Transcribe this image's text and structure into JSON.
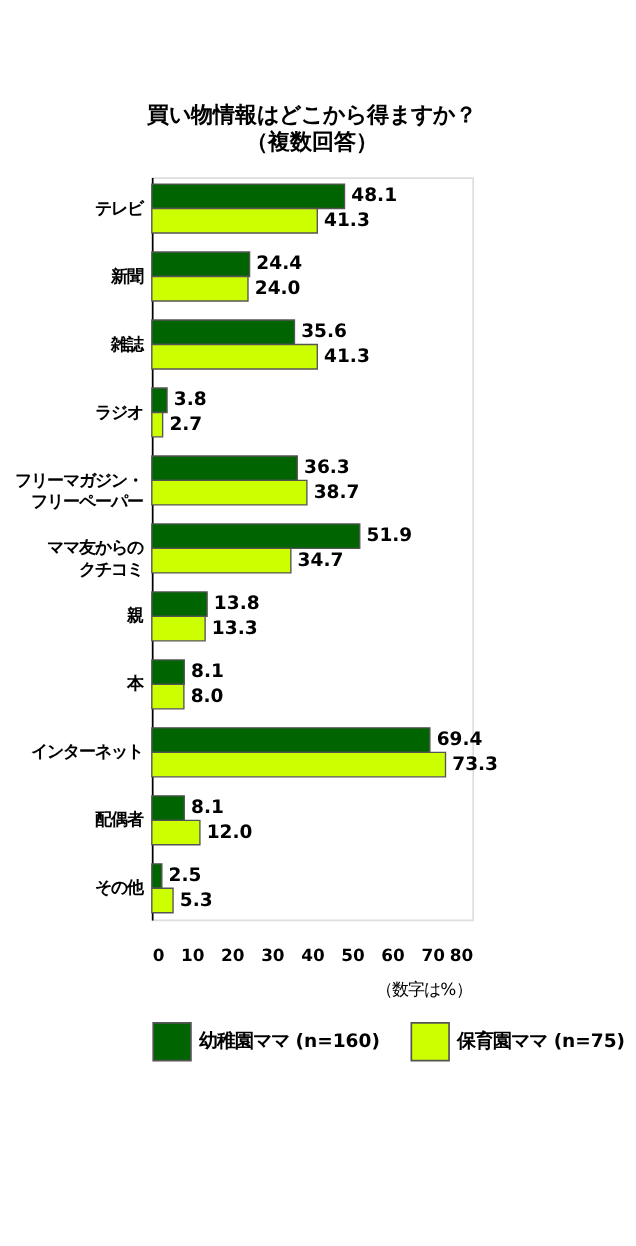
{
  "chart_data": {
    "type": "bar",
    "orientation": "horizontal",
    "title": "買い物情報はどこから得ますか？",
    "subtitle": "（複数回答）",
    "categories": [
      "テレビ",
      "新聞",
      "雑誌",
      "ラジオ",
      "フリーマガジン・フリーペーパー",
      "ママ友からのクチコミ",
      "親",
      "本",
      "インターネット",
      "配偶者",
      "その他"
    ],
    "series": [
      {
        "name": "幼稚園ママ (n=160)",
        "color": "#006400",
        "values": [
          48.1,
          24.4,
          35.6,
          3.8,
          36.3,
          51.9,
          13.8,
          8.1,
          69.4,
          8.1,
          2.5
        ],
        "value_labels": [
          "48.1",
          "24.4",
          "35.6",
          "3.8",
          "36.3",
          "51.9",
          "13.8",
          "8.1",
          "69.4",
          "8.1",
          "2.5"
        ]
      },
      {
        "name": "保育園ママ (n=75)",
        "color": "#ccff00",
        "values": [
          41.3,
          24.0,
          41.3,
          2.7,
          38.7,
          34.7,
          13.3,
          8.0,
          73.3,
          12.0,
          5.3
        ],
        "value_labels": [
          "41.3",
          "24.0",
          "41.3",
          "2.7",
          "38.7",
          "34.7",
          "13.3",
          "8.0",
          "73.3",
          "12.0",
          "5.3"
        ]
      }
    ],
    "xlim": [
      0,
      80
    ],
    "xticks": [
      0,
      10,
      20,
      30,
      40,
      50,
      60,
      70,
      80
    ],
    "legend": "bottom",
    "grid": false,
    "annotations": [
      "（数字は%）"
    ]
  }
}
